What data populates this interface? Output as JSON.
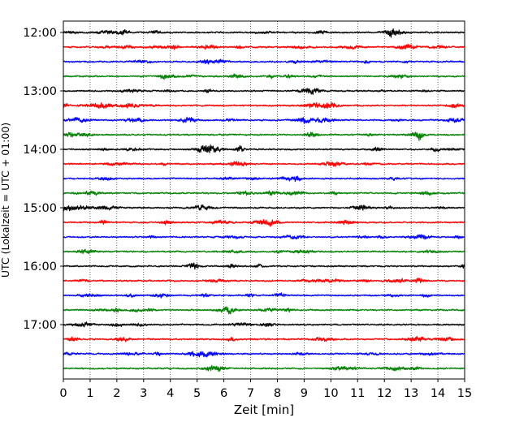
{
  "chart_data": {
    "type": "line",
    "xlabel": "Zeit  [min]",
    "ylabel": "UTC (Lokalzeit = UTC + 01:00)",
    "xlim": [
      0,
      15
    ],
    "x_ticks": [
      0,
      1,
      2,
      3,
      4,
      5,
      6,
      7,
      8,
      9,
      10,
      11,
      12,
      13,
      14,
      15
    ],
    "y_ticks": [
      "12:00",
      "13:00",
      "14:00",
      "15:00",
      "16:00",
      "17:00"
    ],
    "start_time": "12:00",
    "trace_interval_min": 15,
    "trace_count": 24,
    "grid": {
      "vertical_dotted": true
    },
    "series_colors": [
      "#000000",
      "#ff0000",
      "#0000ff",
      "#008000"
    ],
    "series": [
      {
        "start": "12:00",
        "color": "#000000"
      },
      {
        "start": "12:15",
        "color": "#ff0000"
      },
      {
        "start": "12:30",
        "color": "#0000ff"
      },
      {
        "start": "12:45",
        "color": "#008000"
      },
      {
        "start": "13:00",
        "color": "#000000"
      },
      {
        "start": "13:15",
        "color": "#ff0000"
      },
      {
        "start": "13:30",
        "color": "#0000ff"
      },
      {
        "start": "13:45",
        "color": "#008000"
      },
      {
        "start": "14:00",
        "color": "#000000"
      },
      {
        "start": "14:15",
        "color": "#ff0000"
      },
      {
        "start": "14:30",
        "color": "#0000ff"
      },
      {
        "start": "14:45",
        "color": "#008000"
      },
      {
        "start": "15:00",
        "color": "#000000"
      },
      {
        "start": "15:15",
        "color": "#ff0000"
      },
      {
        "start": "15:30",
        "color": "#0000ff"
      },
      {
        "start": "15:45",
        "color": "#008000"
      },
      {
        "start": "16:00",
        "color": "#000000"
      },
      {
        "start": "16:15",
        "color": "#ff0000"
      },
      {
        "start": "16:30",
        "color": "#0000ff"
      },
      {
        "start": "16:45",
        "color": "#008000"
      },
      {
        "start": "17:00",
        "color": "#000000"
      },
      {
        "start": "17:15",
        "color": "#ff0000"
      },
      {
        "start": "17:30",
        "color": "#0000ff"
      },
      {
        "start": "17:45",
        "color": "#008000"
      }
    ]
  }
}
